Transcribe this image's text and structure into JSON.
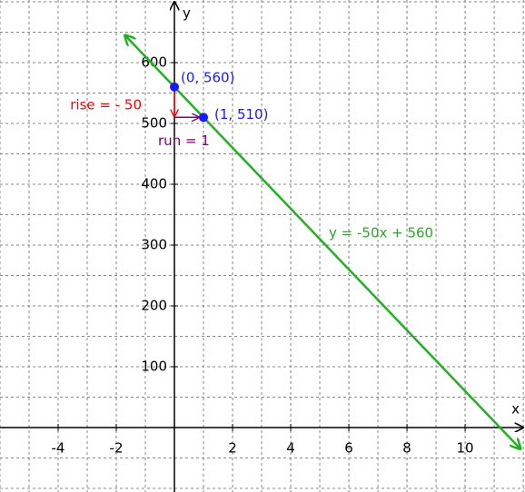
{
  "chart_data": {
    "type": "line",
    "x_label": "x",
    "y_label": "y",
    "xlim": [
      -6,
      12.06
    ],
    "ylim": [
      -106,
      703
    ],
    "xticks": [
      -4,
      -2,
      2,
      4,
      6,
      8,
      10
    ],
    "yticks": [
      100,
      200,
      300,
      400,
      500,
      600
    ],
    "grid": true,
    "series": [
      {
        "name": "y = -50x + 560",
        "color": "#22b022",
        "x": [
          -1.7,
          11.9
        ],
        "values": [
          645,
          -35
        ]
      }
    ],
    "points": {
      "color": "#1a1aff",
      "x": [
        0,
        1
      ],
      "values": [
        560,
        510
      ],
      "labels": [
        "(0, 560)",
        "(1, 510)"
      ]
    },
    "annotations": [
      {
        "text": "rise = - 50",
        "color": "#ff0000"
      },
      {
        "text": "run = 1",
        "color": "#800080"
      }
    ]
  }
}
